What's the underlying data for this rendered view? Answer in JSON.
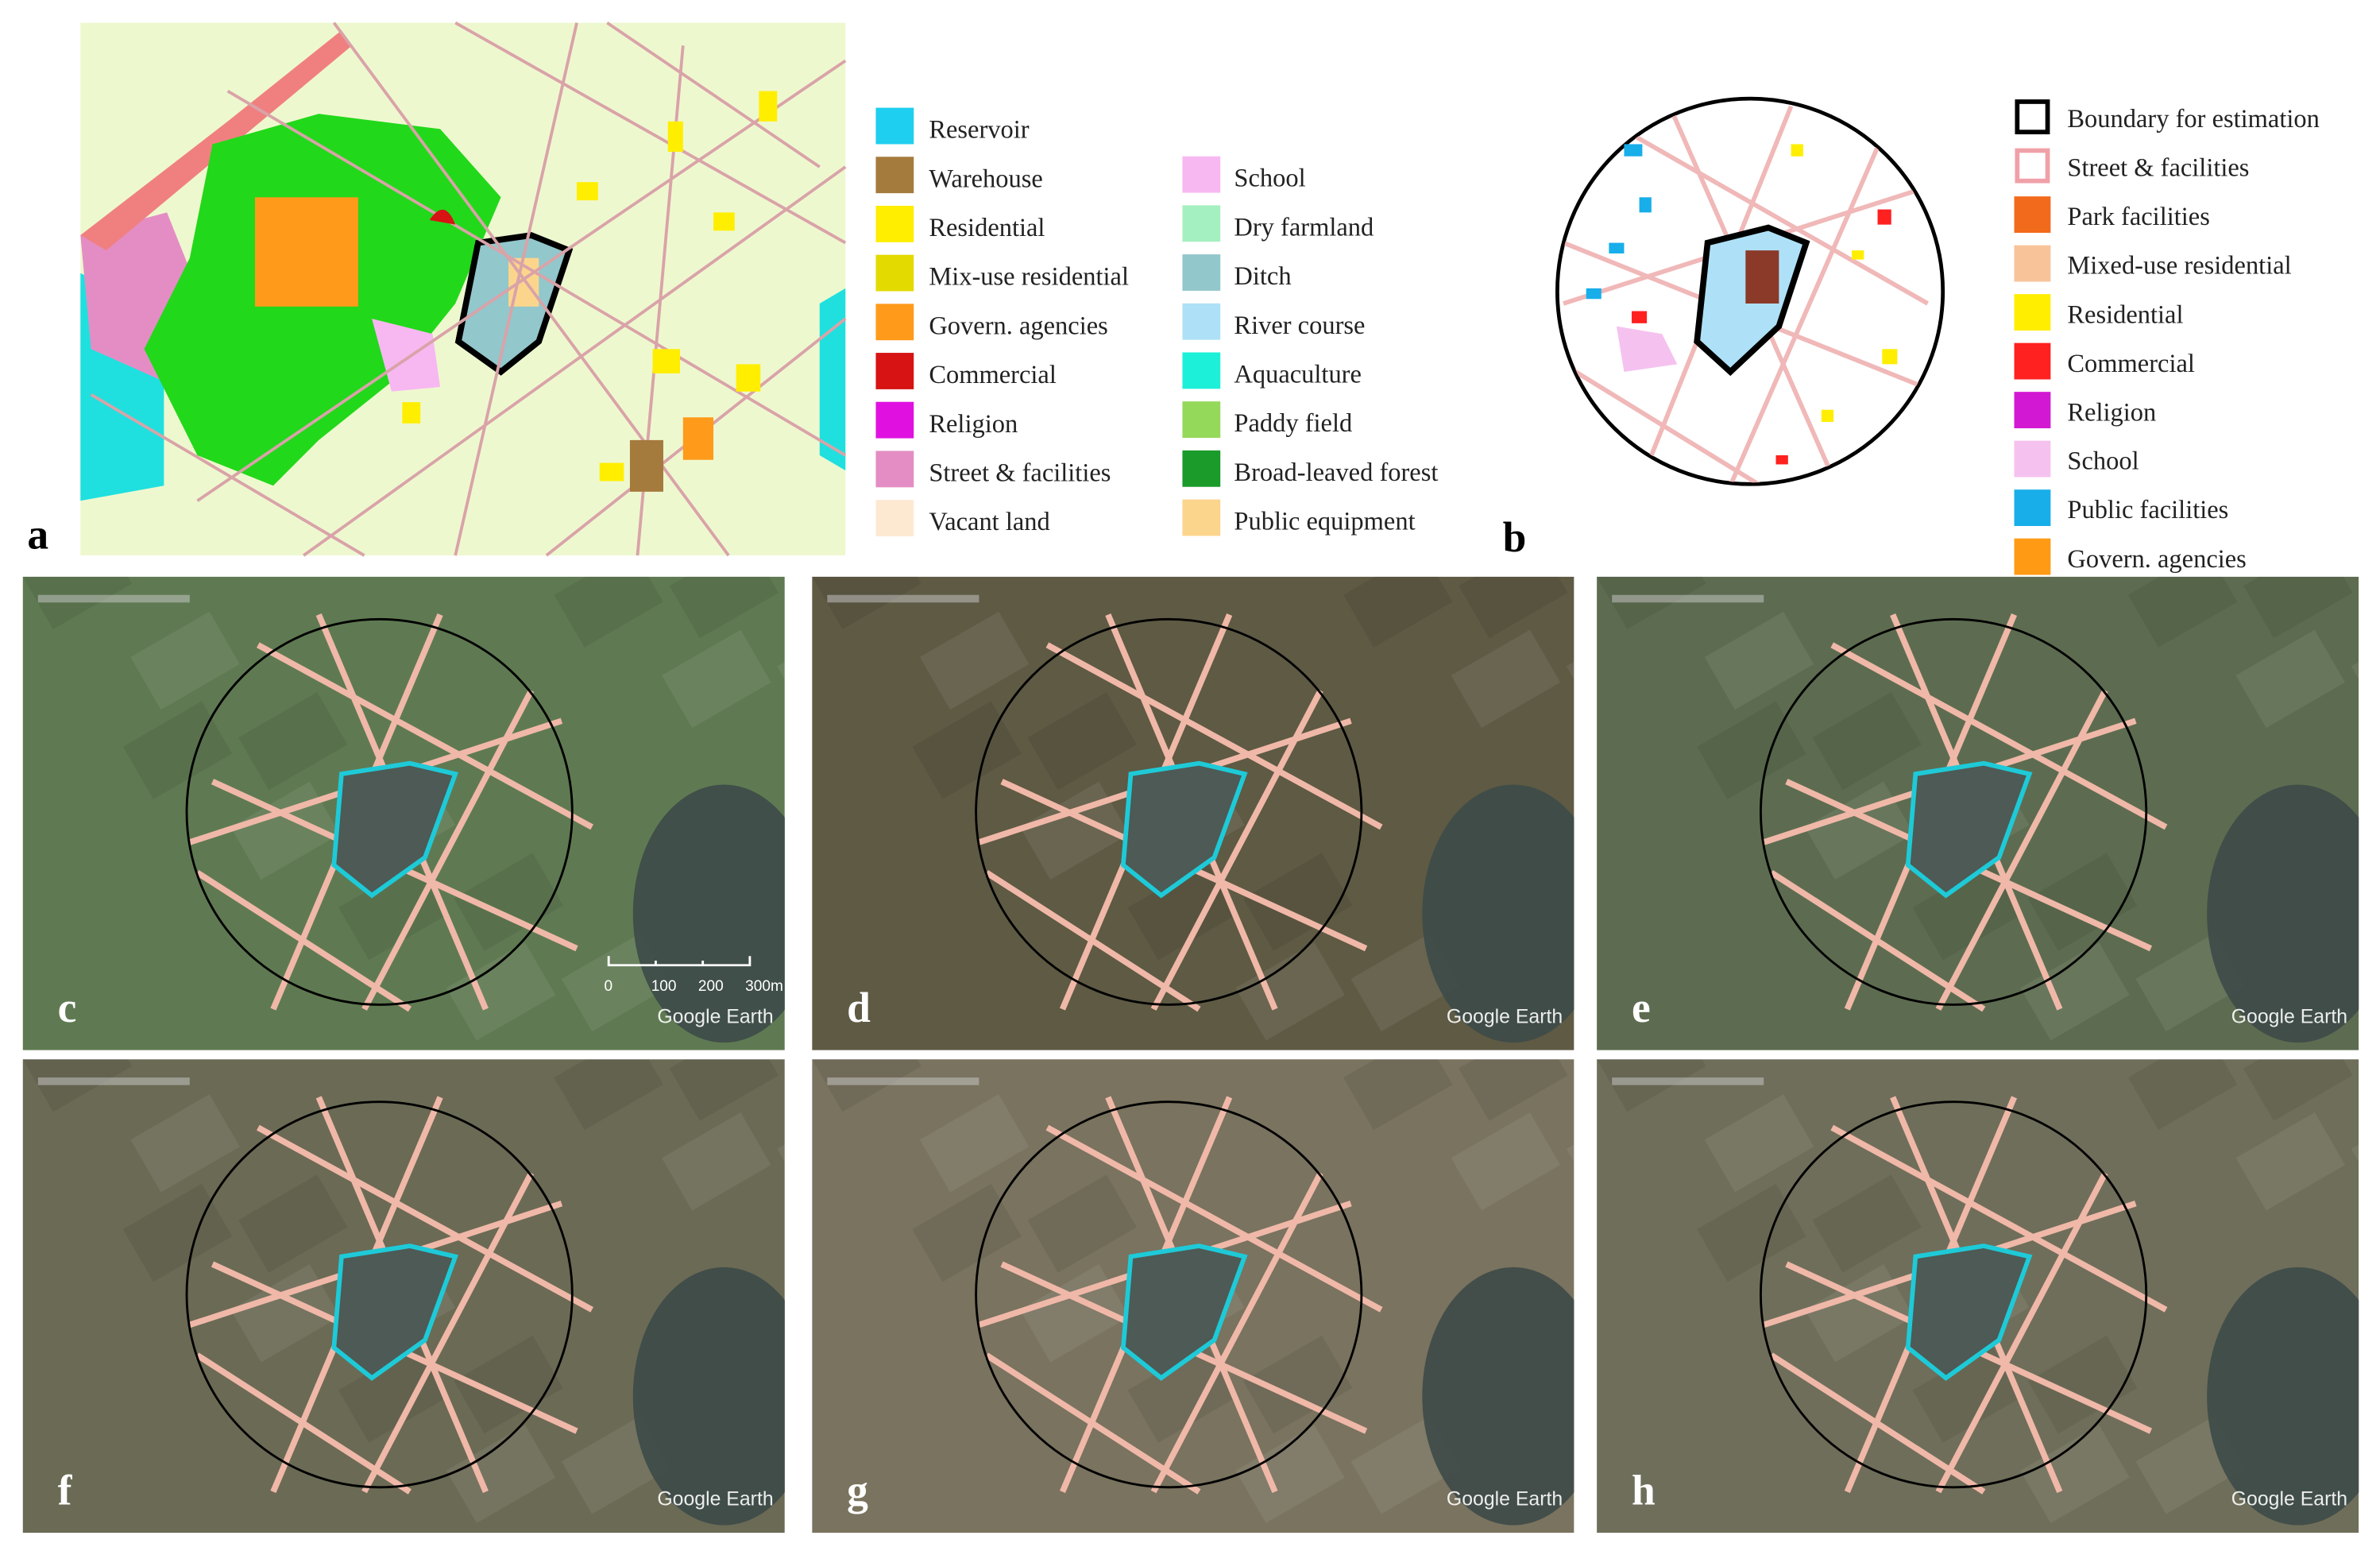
{
  "panel_a": {
    "letter": "a",
    "legend": [
      [
        {
          "name": "Reservoir",
          "color": "#1fcfef"
        },
        {
          "name": "Warehouse",
          "color": "#a57a3d"
        },
        {
          "name": "Residential",
          "color": "#ffee00"
        },
        {
          "name": "Mix-use residential",
          "color": "#e3da00"
        },
        {
          "name": "Govern. agencies",
          "color": "#ff9a1a"
        },
        {
          "name": "Commercial",
          "color": "#d71313"
        },
        {
          "name": "Religion",
          "color": "#e011e0"
        },
        {
          "name": "Street & facilities",
          "color": "#e48dc4"
        },
        {
          "name": "Vacant land",
          "color": "#fde9d2"
        }
      ],
      [
        {
          "name": "School",
          "color": "#f7b8f2"
        },
        {
          "name": "Dry farmland",
          "color": "#a5f0c0"
        },
        {
          "name": "Ditch",
          "color": "#92c7cc"
        },
        {
          "name": "River course",
          "color": "#aee1f7"
        },
        {
          "name": "Aquaculture",
          "color": "#1cf0d8"
        },
        {
          "name": "Paddy field",
          "color": "#95d95a"
        },
        {
          "name": "Broad-leaved forest",
          "color": "#1a9b2a"
        },
        {
          "name": "Public equipment",
          "color": "#fcd58c"
        }
      ]
    ]
  },
  "panel_b": {
    "letter": "b",
    "legend": [
      {
        "name": "Boundary for estimation",
        "color": "#000000",
        "outline": true
      },
      {
        "name": "Street & facilities",
        "color": "#f0a0a8",
        "outline": true
      },
      {
        "name": "Park facilities",
        "color": "#f26a1b"
      },
      {
        "name": "Mixed-use residential",
        "color": "#f9c39a"
      },
      {
        "name": "Residential",
        "color": "#ffee00"
      },
      {
        "name": "Commercial",
        "color": "#ff2020"
      },
      {
        "name": "Religion",
        "color": "#d318d3"
      },
      {
        "name": "School",
        "color": "#f5c2f0"
      },
      {
        "name": "Public facilities",
        "color": "#18aeea"
      },
      {
        "name": "Govern. agencies",
        "color": "#ff9a14"
      }
    ]
  },
  "photos": [
    {
      "letter": "c",
      "background": "#5f7a52"
    },
    {
      "letter": "d",
      "background": "#5e5a44"
    },
    {
      "letter": "e",
      "background": "#5d6c50"
    },
    {
      "letter": "f",
      "background": "#6b6a55"
    },
    {
      "letter": "g",
      "background": "#79735f"
    },
    {
      "letter": "h",
      "background": "#6f6e5a"
    }
  ],
  "scale_bar": [
    "0",
    "100",
    "200",
    "300m"
  ],
  "watermark": "Google Earth"
}
